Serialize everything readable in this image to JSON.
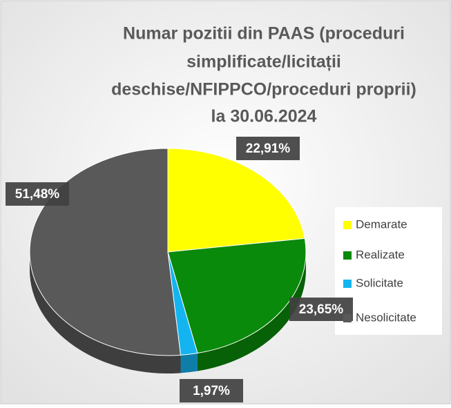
{
  "chart_data": {
    "type": "pie",
    "title": [
      "Numar pozitii din PAAS (proceduri",
      "simplificate/licitații",
      "deschise/NFIPPCO/proceduri proprii)",
      "la 30.06.2024"
    ],
    "categories": [
      "Demarate",
      "Realizate",
      "Solicitate",
      "Nesolicitate"
    ],
    "values": [
      22.91,
      23.65,
      1.97,
      51.48
    ],
    "value_labels": [
      "22,91%",
      "23,65%",
      "1,97%",
      "51,48%"
    ],
    "colors": [
      "#ffff00",
      "#0a8a0a",
      "#14b4f0",
      "#595959"
    ],
    "legend": "right"
  }
}
